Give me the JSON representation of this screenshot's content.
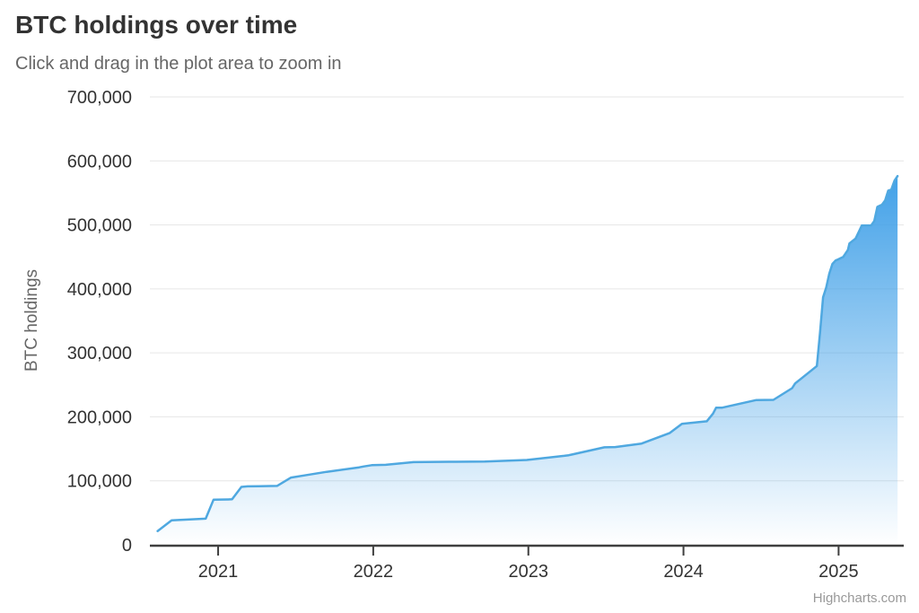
{
  "chart": {
    "title": "BTC holdings over time",
    "subtitle": "Click and drag in the plot area to zoom in",
    "ylabel": "BTC holdings",
    "credits": "Highcharts.com"
  },
  "chart_data": {
    "type": "area",
    "title": "BTC holdings over time",
    "subtitle": "Click and drag in the plot area to zoom in",
    "xlabel": "",
    "ylabel": "BTC holdings",
    "legend": "none",
    "grid": "horizontal",
    "xlim": [
      2020.56,
      2025.42
    ],
    "ylim": [
      0,
      700000
    ],
    "xticks": [
      2021,
      2022,
      2023,
      2024,
      2025
    ],
    "yticks": [
      0,
      100000,
      200000,
      300000,
      400000,
      500000,
      600000,
      700000
    ],
    "colors": {
      "line": "#4fa8e0",
      "fill_top": "#42a1e8",
      "fill_bottom_alpha": 0,
      "grid": "#e6e6e6",
      "axis": "#3f3f3f",
      "tick": "#3f3f3f",
      "tick_label": "#333333",
      "title": "#333333",
      "subtitle": "#666666",
      "y_title": "#666666",
      "credits": "#999999"
    },
    "series": [
      {
        "name": "BTC holdings",
        "points": [
          [
            2020.61,
            21454
          ],
          [
            2020.7,
            38250
          ],
          [
            2020.92,
            40824
          ],
          [
            2020.97,
            70470
          ],
          [
            2021.06,
            70784
          ],
          [
            2021.09,
            71079
          ],
          [
            2021.15,
            90531
          ],
          [
            2021.19,
            91326
          ],
          [
            2021.26,
            91579
          ],
          [
            2021.38,
            92079
          ],
          [
            2021.47,
            105085
          ],
          [
            2021.57,
            108992
          ],
          [
            2021.7,
            114042
          ],
          [
            2021.91,
            121044
          ],
          [
            2021.94,
            122478
          ],
          [
            2021.99,
            124391
          ],
          [
            2022.08,
            125051
          ],
          [
            2022.26,
            129218
          ],
          [
            2022.49,
            129699
          ],
          [
            2022.72,
            130000
          ],
          [
            2022.99,
            132500
          ],
          [
            2023.23,
            138955
          ],
          [
            2023.26,
            140000
          ],
          [
            2023.49,
            152333
          ],
          [
            2023.56,
            152800
          ],
          [
            2023.73,
            158245
          ],
          [
            2023.91,
            174530
          ],
          [
            2023.99,
            189150
          ],
          [
            2024.15,
            193000
          ],
          [
            2024.19,
            205000
          ],
          [
            2024.21,
            214246
          ],
          [
            2024.25,
            214400
          ],
          [
            2024.47,
            226331
          ],
          [
            2024.58,
            226500
          ],
          [
            2024.7,
            244800
          ],
          [
            2024.72,
            252220
          ],
          [
            2024.86,
            279420
          ],
          [
            2024.88,
            331200
          ],
          [
            2024.9,
            386700
          ],
          [
            2024.92,
            402100
          ],
          [
            2024.94,
            423650
          ],
          [
            2024.96,
            439000
          ],
          [
            2024.98,
            444262
          ],
          [
            2025.0,
            446400
          ],
          [
            2025.03,
            450000
          ],
          [
            2025.06,
            461000
          ],
          [
            2025.07,
            471107
          ],
          [
            2025.11,
            478740
          ],
          [
            2025.15,
            499096
          ],
          [
            2025.21,
            499226
          ],
          [
            2025.23,
            506137
          ],
          [
            2025.25,
            528185
          ],
          [
            2025.28,
            531644
          ],
          [
            2025.3,
            538200
          ],
          [
            2025.32,
            553555
          ],
          [
            2025.34,
            555450
          ],
          [
            2025.36,
            568840
          ],
          [
            2025.38,
            576230
          ]
        ]
      }
    ]
  }
}
